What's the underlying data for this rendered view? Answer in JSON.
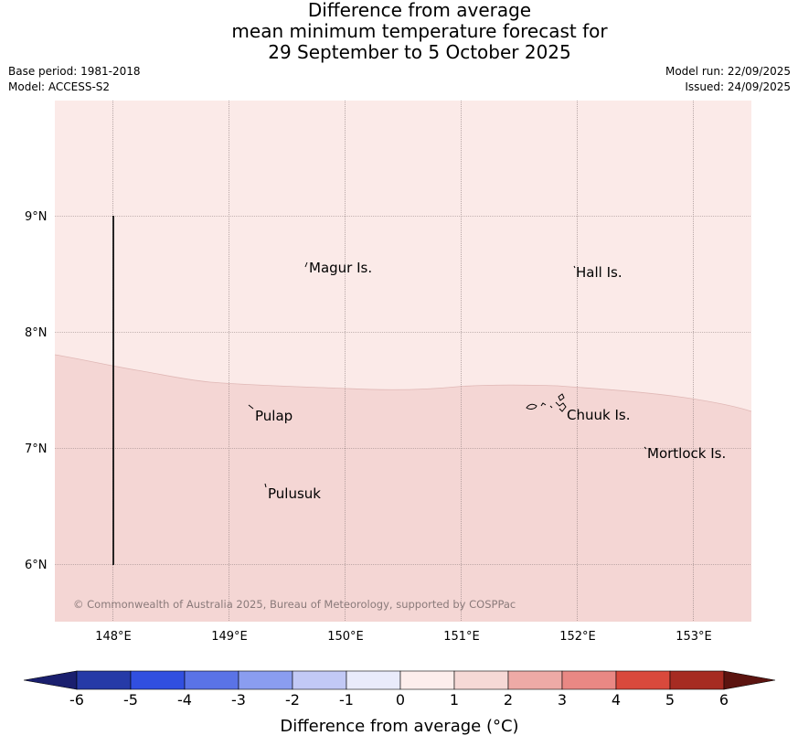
{
  "title": {
    "line1": "Difference from average",
    "line2": "mean minimum temperature forecast for",
    "line3": "29 September to 5 October 2025"
  },
  "meta": {
    "base_period": "Base period: 1981-2018",
    "model": "Model: ACCESS-S2",
    "model_run": "Model run: 22/09/2025",
    "issued": "Issued: 24/09/2025"
  },
  "map": {
    "lon_labels": [
      "148°E",
      "149°E",
      "150°E",
      "151°E",
      "152°E",
      "153°E"
    ],
    "lat_labels": [
      "9°N",
      "8°N",
      "7°N",
      "6°N"
    ],
    "places": [
      "Magur Is.",
      "Hall Is.",
      "Pulap",
      "Chuuk Is.",
      "Mortlock Is.",
      "Pulusuk"
    ],
    "copyright": "© Commonwealth of Australia 2025, Bureau of Meteorology, supported by COSPPac",
    "fill_north": "#fbeae8",
    "fill_south": "#f4d6d4",
    "fill_north_bin": "0 to 1",
    "fill_south_bin": "1 to 2"
  },
  "colorbar": {
    "ticks": [
      "-6",
      "-5",
      "-4",
      "-3",
      "-2",
      "-1",
      "0",
      "1",
      "2",
      "3",
      "4",
      "5",
      "6"
    ],
    "colors": [
      "#263aa7",
      "#314fe0",
      "#5a73e6",
      "#8a9df0",
      "#c2c9f6",
      "#e9ebfb",
      "#fdeeec",
      "#f6d9d6",
      "#eeaaa6",
      "#e98884",
      "#d9493c",
      "#a62b22"
    ],
    "low_extend": "#1a1f6e",
    "high_extend": "#5c1410",
    "label": "Difference from average (°C)"
  }
}
